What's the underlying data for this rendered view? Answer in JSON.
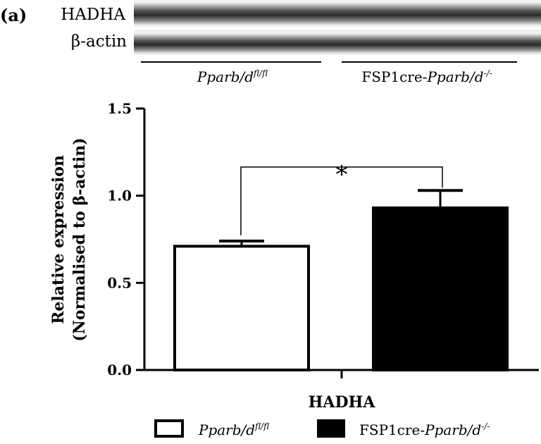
{
  "panel_label": "(a)",
  "blot": {
    "rows": [
      "HADHA",
      "β-actin"
    ],
    "groups": [
      {
        "italic": "Pparb/d",
        "sup": "fl/fl",
        "prefix": ""
      },
      {
        "prefix": "FSP1cre-",
        "italic": "Pparb/d",
        "sup": "-/-"
      }
    ]
  },
  "chart_data": {
    "type": "bar",
    "title": "",
    "xlabel": "HADHA",
    "ylabel": [
      "Relative expression",
      "(Normalised to β-actin)"
    ],
    "ylim": [
      0,
      1.5
    ],
    "yticks": [
      "0.0",
      "0.5",
      "1.0",
      "1.5"
    ],
    "categories": [
      "HADHA"
    ],
    "series": [
      {
        "name": "Pparb/d fl/fl",
        "values": [
          0.71
        ],
        "error": [
          0.03
        ],
        "fill": "#ffffff"
      },
      {
        "name": "FSP1cre-Pparb/d -/-",
        "values": [
          0.93
        ],
        "error": [
          0.1
        ],
        "fill": "#000000"
      }
    ],
    "annotations": [
      {
        "text": "*",
        "between": [
          0,
          1
        ]
      }
    ],
    "legend": {
      "placement": "bottom",
      "entries": [
        {
          "prefix": "",
          "italic": "Pparb/d",
          "sup": "fl/fl"
        },
        {
          "prefix": "FSP1cre-",
          "italic": "Pparb/d",
          "sup": "-/-"
        }
      ]
    },
    "grid": false
  }
}
